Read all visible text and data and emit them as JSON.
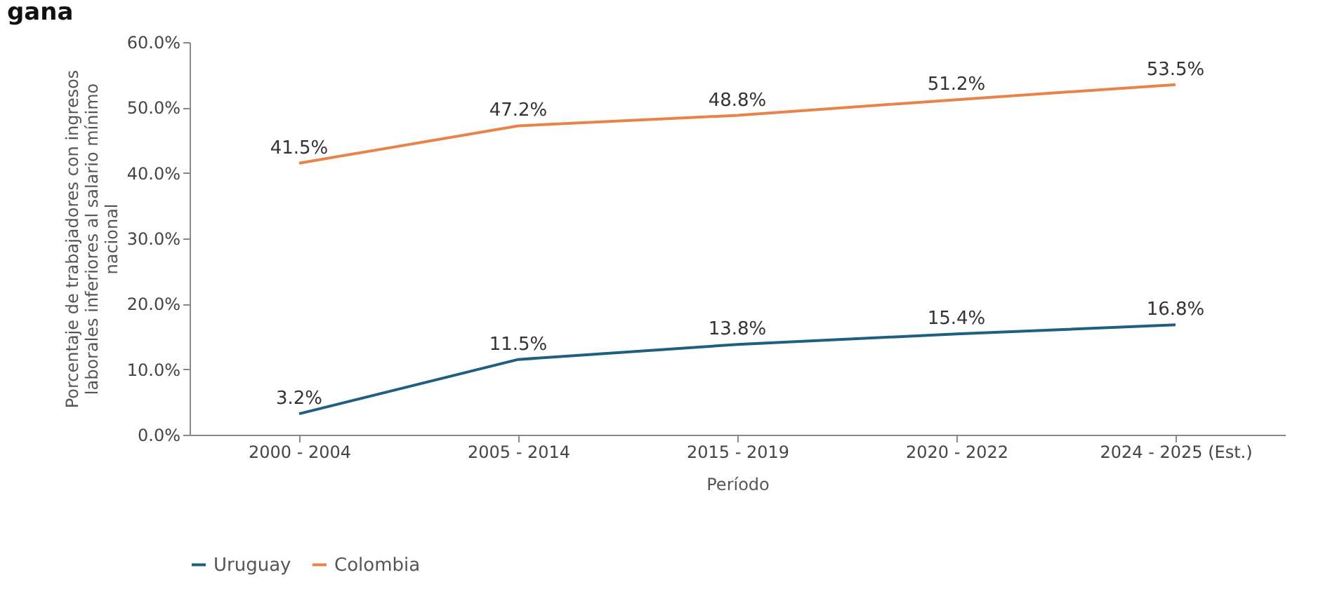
{
  "chart_data": {
    "type": "line",
    "title": "gana",
    "xlabel": "Período",
    "ylabel": "Porcentaje de trabajadores con ingresos laborales inferiores al salario mínimo nacional",
    "categories": [
      "2000 - 2004",
      "2005 - 2014",
      "2015 - 2019",
      "2020 - 2022",
      "2024 - 2025 (Est.)"
    ],
    "series": [
      {
        "name": "Uruguay",
        "color": "#1f5f7f",
        "values": [
          3.2,
          11.5,
          13.8,
          15.4,
          16.8
        ],
        "value_labels": [
          "3.2%",
          "11.5%",
          "13.8%",
          "15.4%",
          "16.8%"
        ]
      },
      {
        "name": "Colombia",
        "color": "#e8834a",
        "values": [
          41.5,
          47.2,
          48.8,
          51.2,
          53.5
        ],
        "value_labels": [
          "41.5%",
          "47.2%",
          "48.8%",
          "51.2%",
          "53.5%"
        ]
      }
    ],
    "ylim": [
      0,
      60
    ],
    "yticks": [
      {
        "value": 0,
        "label": "0.0%"
      },
      {
        "value": 10,
        "label": "10.0%"
      },
      {
        "value": 20,
        "label": "20.0%"
      },
      {
        "value": 30,
        "label": "30.0%"
      },
      {
        "value": 40,
        "label": "40.0%"
      },
      {
        "value": 50,
        "label": "50.0%"
      },
      {
        "value": 60,
        "label": "60.0%"
      }
    ],
    "grid": false,
    "legend": "bottom",
    "marker": "none",
    "line_style": "solid"
  }
}
